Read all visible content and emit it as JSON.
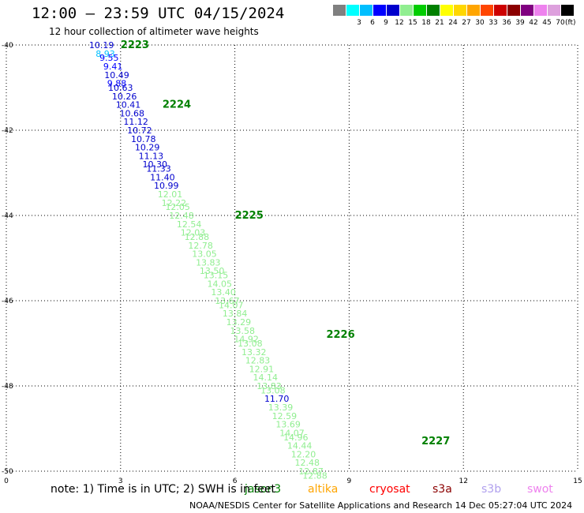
{
  "header": {
    "title": "12:00 — 23:59 UTC 04/15/2024",
    "subtitle": "12 hour collection of altimeter wave heights"
  },
  "legend": {
    "unit": "(ft)",
    "bins": [
      {
        "label": "",
        "color": "#808080"
      },
      {
        "label": "3",
        "color": "#00ffff"
      },
      {
        "label": "6",
        "color": "#00bfff"
      },
      {
        "label": "9",
        "color": "#0000ff"
      },
      {
        "label": "12",
        "color": "#0000cd"
      },
      {
        "label": "15",
        "color": "#90ee90"
      },
      {
        "label": "18",
        "color": "#00cd00"
      },
      {
        "label": "21",
        "color": "#008000"
      },
      {
        "label": "24",
        "color": "#ffff00"
      },
      {
        "label": "27",
        "color": "#ffd700"
      },
      {
        "label": "30",
        "color": "#ffa500"
      },
      {
        "label": "33",
        "color": "#ff4500"
      },
      {
        "label": "36",
        "color": "#cd0000"
      },
      {
        "label": "39",
        "color": "#8b0000"
      },
      {
        "label": "42",
        "color": "#800080"
      },
      {
        "label": "45",
        "color": "#ee82ee"
      },
      {
        "label": "70",
        "color": "#dda0dd"
      },
      {
        "label": "",
        "color": "#000000"
      }
    ]
  },
  "chart_data": {
    "type": "scatter",
    "title": "12:00 — 23:59 UTC 04/15/2024",
    "subtitle": "12 hour collection of altimeter wave heights",
    "x_ticks": [
      "0",
      "3",
      "6",
      "9",
      "12",
      "15"
    ],
    "y_ticks": [
      "-40",
      "-42",
      "-44",
      "-46",
      "-48",
      "-50"
    ],
    "xlim": [
      0,
      15
    ],
    "ylim": [
      -50,
      -40
    ],
    "grid": true,
    "points": [
      {
        "x": 2.5,
        "y": -40.0,
        "label": "10.19",
        "color": "#0000cd"
      },
      {
        "x": 2.6,
        "y": -40.2,
        "label": "8.93",
        "color": "#00bfff"
      },
      {
        "x": 2.7,
        "y": -40.3,
        "label": "9.55",
        "color": "#0000ff"
      },
      {
        "x": 2.8,
        "y": -40.5,
        "label": "9.41",
        "color": "#0000ff"
      },
      {
        "x": 2.9,
        "y": -40.7,
        "label": "10.49",
        "color": "#0000cd"
      },
      {
        "x": 2.9,
        "y": -40.9,
        "label": "9.88",
        "color": "#0000ff"
      },
      {
        "x": 3.0,
        "y": -41.0,
        "label": "10.63",
        "color": "#0000cd"
      },
      {
        "x": 3.1,
        "y": -41.2,
        "label": "10.26",
        "color": "#0000cd"
      },
      {
        "x": 3.2,
        "y": -41.4,
        "label": "10.41",
        "color": "#0000cd"
      },
      {
        "x": 3.3,
        "y": -41.6,
        "label": "10.68",
        "color": "#0000cd"
      },
      {
        "x": 3.4,
        "y": -41.8,
        "label": "11.12",
        "color": "#0000cd"
      },
      {
        "x": 3.5,
        "y": -42.0,
        "label": "10.72",
        "color": "#0000cd"
      },
      {
        "x": 3.6,
        "y": -42.2,
        "label": "10.78",
        "color": "#0000cd"
      },
      {
        "x": 3.7,
        "y": -42.4,
        "label": "10.29",
        "color": "#0000cd"
      },
      {
        "x": 3.8,
        "y": -42.6,
        "label": "11.13",
        "color": "#0000cd"
      },
      {
        "x": 3.9,
        "y": -42.8,
        "label": "10.30",
        "color": "#0000cd"
      },
      {
        "x": 4.0,
        "y": -42.9,
        "label": "11.33",
        "color": "#0000cd"
      },
      {
        "x": 4.1,
        "y": -43.1,
        "label": "11.40",
        "color": "#0000cd"
      },
      {
        "x": 4.2,
        "y": -43.3,
        "label": "10.99",
        "color": "#0000cd"
      },
      {
        "x": 4.3,
        "y": -43.5,
        "label": "12.01",
        "color": "#90ee90"
      },
      {
        "x": 4.4,
        "y": -43.7,
        "label": "12.22",
        "color": "#90ee90"
      },
      {
        "x": 4.5,
        "y": -43.8,
        "label": "12.05",
        "color": "#90ee90"
      },
      {
        "x": 4.6,
        "y": -44.0,
        "label": "12.48",
        "color": "#90ee90"
      },
      {
        "x": 4.8,
        "y": -44.2,
        "label": "12.54",
        "color": "#90ee90"
      },
      {
        "x": 4.9,
        "y": -44.4,
        "label": "12.03",
        "color": "#90ee90"
      },
      {
        "x": 5.0,
        "y": -44.5,
        "label": "12.88",
        "color": "#90ee90"
      },
      {
        "x": 5.1,
        "y": -44.7,
        "label": "12.78",
        "color": "#90ee90"
      },
      {
        "x": 5.2,
        "y": -44.9,
        "label": "13.05",
        "color": "#90ee90"
      },
      {
        "x": 5.3,
        "y": -45.1,
        "label": "13.83",
        "color": "#90ee90"
      },
      {
        "x": 5.4,
        "y": -45.3,
        "label": "13.50",
        "color": "#90ee90"
      },
      {
        "x": 5.5,
        "y": -45.4,
        "label": "13.15",
        "color": "#90ee90"
      },
      {
        "x": 5.6,
        "y": -45.6,
        "label": "14.05",
        "color": "#90ee90"
      },
      {
        "x": 5.7,
        "y": -45.8,
        "label": "13.40",
        "color": "#90ee90"
      },
      {
        "x": 5.8,
        "y": -46.0,
        "label": "13.67",
        "color": "#90ee90"
      },
      {
        "x": 5.9,
        "y": -46.1,
        "label": "14.07",
        "color": "#90ee90"
      },
      {
        "x": 6.0,
        "y": -46.3,
        "label": "13.84",
        "color": "#90ee90"
      },
      {
        "x": 6.1,
        "y": -46.5,
        "label": "13.29",
        "color": "#90ee90"
      },
      {
        "x": 6.2,
        "y": -46.7,
        "label": "13.58",
        "color": "#90ee90"
      },
      {
        "x": 6.3,
        "y": -46.9,
        "label": "14.92",
        "color": "#90ee90"
      },
      {
        "x": 6.4,
        "y": -47.0,
        "label": "13.08",
        "color": "#90ee90"
      },
      {
        "x": 6.5,
        "y": -47.2,
        "label": "13.32",
        "color": "#90ee90"
      },
      {
        "x": 6.6,
        "y": -47.4,
        "label": "12.83",
        "color": "#90ee90"
      },
      {
        "x": 6.7,
        "y": -47.6,
        "label": "12.91",
        "color": "#90ee90"
      },
      {
        "x": 6.8,
        "y": -47.8,
        "label": "14.14",
        "color": "#90ee90"
      },
      {
        "x": 6.9,
        "y": -48.0,
        "label": "13.83",
        "color": "#90ee90"
      },
      {
        "x": 7.0,
        "y": -48.1,
        "label": "13.08",
        "color": "#90ee90"
      },
      {
        "x": 7.1,
        "y": -48.3,
        "label": "11.70",
        "color": "#0000cd"
      },
      {
        "x": 7.2,
        "y": -48.5,
        "label": "13.39",
        "color": "#90ee90"
      },
      {
        "x": 7.3,
        "y": -48.7,
        "label": "12.59",
        "color": "#90ee90"
      },
      {
        "x": 7.4,
        "y": -48.9,
        "label": "13.69",
        "color": "#90ee90"
      },
      {
        "x": 7.5,
        "y": -49.1,
        "label": "14.07",
        "color": "#90ee90"
      },
      {
        "x": 7.6,
        "y": -49.2,
        "label": "14.96",
        "color": "#90ee90"
      },
      {
        "x": 7.7,
        "y": -49.4,
        "label": "14.44",
        "color": "#90ee90"
      },
      {
        "x": 7.8,
        "y": -49.6,
        "label": "12.20",
        "color": "#90ee90"
      },
      {
        "x": 7.9,
        "y": -49.8,
        "label": "12.48",
        "color": "#90ee90"
      },
      {
        "x": 8.0,
        "y": -50.0,
        "label": "12.87",
        "color": "#90ee90"
      },
      {
        "x": 8.1,
        "y": -50.1,
        "label": "12.88",
        "color": "#90ee90"
      }
    ],
    "pass_labels": [
      {
        "x": 3.0,
        "y": -40.0,
        "label": "2223"
      },
      {
        "x": 4.1,
        "y": -41.4,
        "label": "2224"
      },
      {
        "x": 6.0,
        "y": -44.0,
        "label": "2225"
      },
      {
        "x": 8.4,
        "y": -46.8,
        "label": "2226"
      },
      {
        "x": 10.9,
        "y": -49.3,
        "label": "2227"
      }
    ]
  },
  "footer": {
    "note": "note:  1) Time is in UTC;  2) SWH is in feet",
    "credit": "NOAA/NESDIS Center for Satellite Applications and Research    14 Dec 05:27:04 UTC 2024",
    "satellites": [
      {
        "label": "jason3",
        "color": "#008000"
      },
      {
        "label": "altika",
        "color": "#ffa500"
      },
      {
        "label": "cryosat",
        "color": "#ff0000"
      },
      {
        "label": "s3a",
        "color": "#8b0000"
      },
      {
        "label": "s3b",
        "color": "#b0a0ee"
      },
      {
        "label": "swot",
        "color": "#ee82ee"
      }
    ]
  }
}
